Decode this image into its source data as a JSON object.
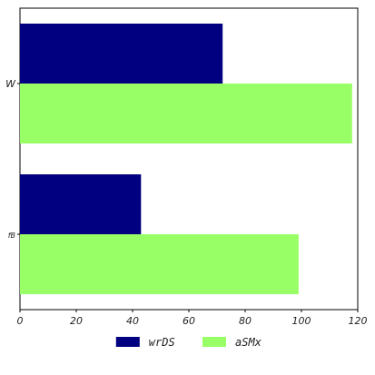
{
  "chart_data": {
    "type": "bar",
    "orientation": "horizontal",
    "categories": [
      "W",
      "fB"
    ],
    "series": [
      {
        "name": "wrDS",
        "values": [
          72,
          43
        ],
        "color": "#000080"
      },
      {
        "name": "aSMx",
        "values": [
          118,
          99
        ],
        "color": "#99ff66"
      }
    ],
    "xlim": [
      0,
      120
    ],
    "x_ticks": [
      0,
      20,
      40,
      60,
      80,
      100,
      120
    ],
    "title": "",
    "xlabel": "",
    "ylabel": "",
    "grid": false,
    "legend_position": "bottom-center"
  }
}
